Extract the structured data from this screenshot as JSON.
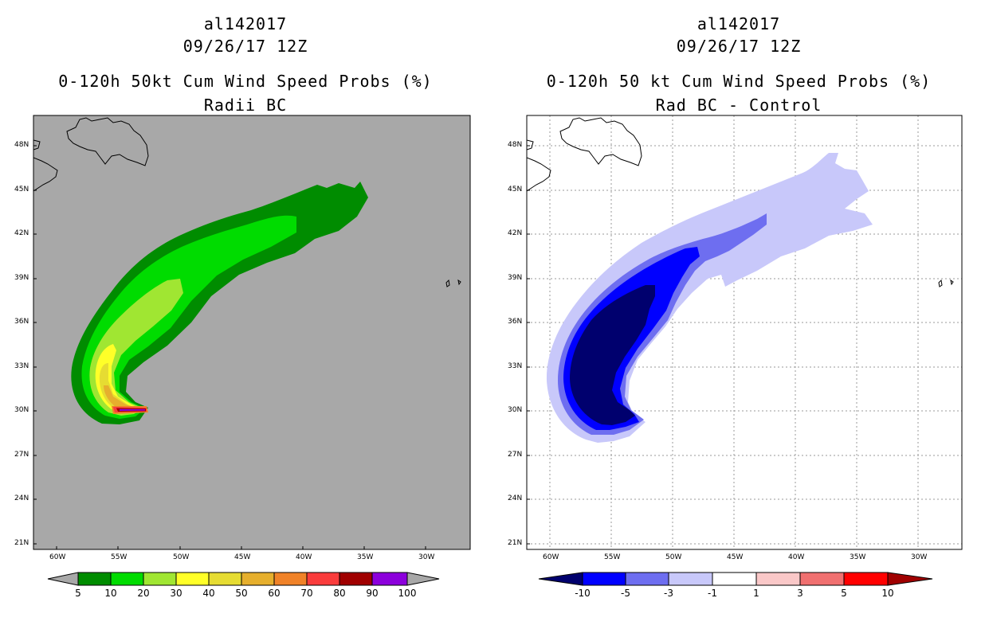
{
  "panels": [
    {
      "storm_id": "al142017",
      "datetime": "09/26/17 12Z",
      "title_line1": "0-120h 50kt Cum Wind Speed Probs (%)",
      "title_line2": "Radii BC",
      "background_color": "#a8a8a8"
    },
    {
      "storm_id": "al142017",
      "datetime": "09/26/17 12Z",
      "title_line1": "0-120h 50 kt Cum Wind Speed Probs (%)",
      "title_line2": "Rad BC - Control",
      "background_color": "#ffffff"
    }
  ],
  "lat_labels": [
    "48N",
    "45N",
    "42N",
    "39N",
    "36N",
    "33N",
    "30N",
    "27N",
    "24N",
    "21N"
  ],
  "lon_labels": [
    "60W",
    "55W",
    "50W",
    "45W",
    "40W",
    "35W",
    "30W"
  ],
  "colorbar_left": {
    "labels": [
      "5",
      "10",
      "20",
      "30",
      "40",
      "50",
      "60",
      "70",
      "80",
      "90",
      "100"
    ],
    "colors": [
      "#008c00",
      "#00dc00",
      "#a0e632",
      "#ffff28",
      "#e6dc32",
      "#e6af2d",
      "#f08228",
      "#fa3c3c",
      "#a00000",
      "#8c00dc"
    ]
  },
  "colorbar_right": {
    "labels": [
      "-10",
      "-5",
      "-3",
      "-1",
      "1",
      "3",
      "5",
      "10"
    ],
    "colors": [
      "#0000ff",
      "#6e6ef0",
      "#c8c8fa",
      "#ffffff",
      "#fac8c8",
      "#f07070",
      "#ff0000"
    ],
    "low_end_color": "#00006e",
    "high_end_color": "#a00000"
  }
}
